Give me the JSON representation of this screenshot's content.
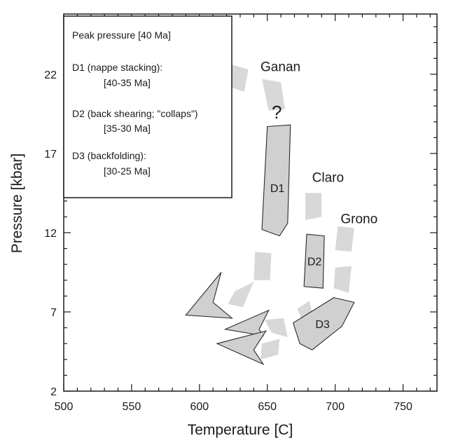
{
  "chart_data": {
    "type": "scatter",
    "xlabel": "Temperature [C]",
    "ylabel": "Pressure [kbar]",
    "xlim": [
      500,
      775
    ],
    "ylim": [
      2,
      25.8
    ],
    "xticks": [
      500,
      550,
      600,
      650,
      700,
      750
    ],
    "yticks": [
      2,
      7,
      12,
      17,
      22
    ],
    "grid": false,
    "legend": {
      "placement": "top-left",
      "entries": [
        {
          "label": "Peak pressure [40 Ma]"
        },
        {
          "label": "D1 (nappe stacking):",
          "age": "[40-35 Ma]"
        },
        {
          "label": "D2 (back shearing; \"collaps\")",
          "age": "[35-30 Ma]"
        },
        {
          "label": "D3 (backfolding):",
          "age": "[30-25 Ma]"
        }
      ]
    },
    "locality_paths": [
      {
        "name": "Ganan",
        "label_at": [
          645,
          22.2
        ],
        "color": "#d8d8d8",
        "segments": [
          [
            [
              624,
              22.6
            ],
            [
              636,
              22.3
            ],
            [
              633,
              20.9
            ],
            [
              622,
              21.2
            ]
          ],
          [
            [
              646,
              21.7
            ],
            [
              660,
              21.5
            ],
            [
              663,
              19.8
            ],
            [
              651,
              19.7
            ]
          ]
        ]
      },
      {
        "name": "Claro",
        "label_at": [
          683,
          15.2
        ],
        "color": "#d8d8d8",
        "segments": [
          [
            [
              678,
              14.5
            ],
            [
              690,
              14.5
            ],
            [
              690,
              13.0
            ],
            [
              678,
              12.8
            ]
          ],
          [
            [
              641,
              10.8
            ],
            [
              653,
              10.7
            ],
            [
              652,
              9.0
            ],
            [
              640,
              9.0
            ]
          ],
          [
            [
              626,
              8.3
            ],
            [
              640,
              8.9
            ],
            [
              632,
              7.3
            ],
            [
              621,
              7.5
            ]
          ],
          [
            [
              672,
              7.2
            ],
            [
              681,
              7.7
            ],
            [
              684,
              6.6
            ],
            [
              676,
              6.4
            ]
          ],
          [
            [
              648,
              6.5
            ],
            [
              662,
              6.6
            ],
            [
              665,
              5.4
            ],
            [
              653,
              5.7
            ]
          ],
          [
            [
              646,
              5.0
            ],
            [
              659,
              5.3
            ],
            [
              658,
              4.3
            ],
            [
              645,
              4.0
            ]
          ]
        ]
      },
      {
        "name": "Grono",
        "label_at": [
          704,
          12.6
        ],
        "color": "#d8d8d8",
        "segments": [
          [
            [
              702,
              12.4
            ],
            [
              714,
              12.3
            ],
            [
              712,
              10.8
            ],
            [
              700,
              10.9
            ]
          ],
          [
            [
              700,
              9.8
            ],
            [
              712,
              9.9
            ],
            [
              710,
              8.2
            ],
            [
              699,
              8.5
            ]
          ]
        ]
      }
    ],
    "stages": [
      {
        "name": "D1",
        "color": "#d0d0d0",
        "polygon": [
          [
            650,
            18.7
          ],
          [
            667,
            18.8
          ],
          [
            665,
            12.6
          ],
          [
            659,
            11.8
          ],
          [
            646,
            12.2
          ]
        ]
      },
      {
        "name": "D2",
        "color": "#d0d0d0",
        "polygon": [
          [
            679,
            11.9
          ],
          [
            692,
            11.8
          ],
          [
            691,
            8.5
          ],
          [
            677,
            8.6
          ]
        ]
      },
      {
        "name": "D3",
        "color": "#d0d0d0",
        "polygon": [
          [
            699,
            7.9
          ],
          [
            714,
            7.6
          ],
          [
            705,
            6.1
          ],
          [
            683,
            4.6
          ],
          [
            674,
            5.0
          ],
          [
            669,
            6.3
          ]
        ]
      }
    ],
    "arrowheads": [
      {
        "color": "#d0d0d0",
        "polygon": [
          [
            616,
            9.5
          ],
          [
            610,
            7.6
          ],
          [
            624,
            6.6
          ],
          [
            590,
            6.8
          ]
        ]
      },
      {
        "color": "#d0d0d0",
        "polygon": [
          [
            651,
            7.1
          ],
          [
            644,
            5.9
          ],
          [
            647,
            5.5
          ],
          [
            619,
            5.9
          ]
        ]
      },
      {
        "color": "#d0d0d0",
        "polygon": [
          [
            649,
            5.8
          ],
          [
            640,
            4.6
          ],
          [
            647,
            3.7
          ],
          [
            613,
            5.0
          ]
        ]
      }
    ],
    "annotations": [
      {
        "text": "?",
        "at": [
          657,
          19.2
        ]
      }
    ]
  }
}
